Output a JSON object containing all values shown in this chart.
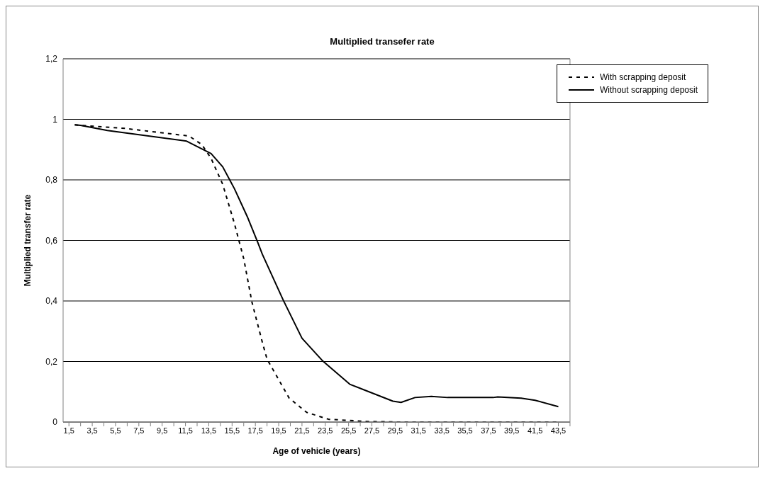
{
  "chart_data": {
    "type": "line",
    "title": "Multiplied transefer rate",
    "xlabel": "Age of vehicle (years)",
    "ylabel": "Multiplied transfer rate",
    "series": [
      {
        "name": "Without scrapping deposit",
        "color": "#000000",
        "line_style": "solid",
        "x": [
          2,
          2.5,
          4.8,
          11.6,
          13.7,
          14.7,
          15.7,
          16.8,
          17.7,
          18.1,
          19.9,
          21.5,
          23.3,
          25.6,
          29.3,
          30,
          31.2,
          32.6,
          34,
          37.9,
          38.3,
          40.3,
          41.5,
          43.5
        ],
        "values": [
          0.982,
          0.98,
          0.963,
          0.928,
          0.887,
          0.843,
          0.771,
          0.679,
          0.594,
          0.554,
          0.402,
          0.277,
          0.201,
          0.125,
          0.069,
          0.065,
          0.081,
          0.085,
          0.081,
          0.081,
          0.083,
          0.079,
          0.072,
          0.051
        ]
      },
      {
        "name": "With scrapping deposit",
        "color": "#000000",
        "line_style": "dashed",
        "x": [
          2,
          2.5,
          6.3,
          11.8,
          12.9,
          13.7,
          14.7,
          15.7,
          16.5,
          17.2,
          18.1,
          18.5,
          20.4,
          21.9,
          23.8,
          27.1,
          30,
          35,
          40,
          43.5
        ],
        "values": [
          0.982,
          0.98,
          0.97,
          0.945,
          0.917,
          0.871,
          0.785,
          0.656,
          0.54,
          0.397,
          0.263,
          0.208,
          0.079,
          0.032,
          0.009,
          0.002,
          0,
          0,
          0,
          0
        ]
      }
    ],
    "xlim": [
      1,
      44.5
    ],
    "xticks": [
      {
        "value": 1.5,
        "label": "1,5"
      },
      {
        "value": 2.5,
        "label": null
      },
      {
        "value": 3.5,
        "label": "3,5"
      },
      {
        "value": 4.5,
        "label": null
      },
      {
        "value": 5.5,
        "label": "5,5"
      },
      {
        "value": 6.5,
        "label": null
      },
      {
        "value": 7.5,
        "label": "7,5"
      },
      {
        "value": 8.5,
        "label": null
      },
      {
        "value": 9.5,
        "label": "9,5"
      },
      {
        "value": 10.5,
        "label": null
      },
      {
        "value": 11.5,
        "label": "11,5"
      },
      {
        "value": 12.5,
        "label": null
      },
      {
        "value": 13.5,
        "label": "13,5"
      },
      {
        "value": 14.5,
        "label": null
      },
      {
        "value": 15.5,
        "label": "15,5"
      },
      {
        "value": 16.5,
        "label": null
      },
      {
        "value": 17.5,
        "label": "17,5"
      },
      {
        "value": 18.5,
        "label": null
      },
      {
        "value": 19.5,
        "label": "19,5"
      },
      {
        "value": 20.5,
        "label": null
      },
      {
        "value": 21.5,
        "label": "21,5"
      },
      {
        "value": 22.5,
        "label": null
      },
      {
        "value": 23.5,
        "label": "23,5"
      },
      {
        "value": 24.5,
        "label": null
      },
      {
        "value": 25.5,
        "label": "25,5"
      },
      {
        "value": 26.5,
        "label": null
      },
      {
        "value": 27.5,
        "label": "27,5"
      },
      {
        "value": 28.5,
        "label": null
      },
      {
        "value": 29.5,
        "label": "29,5"
      },
      {
        "value": 30.5,
        "label": null
      },
      {
        "value": 31.5,
        "label": "31,5"
      },
      {
        "value": 32.5,
        "label": null
      },
      {
        "value": 33.5,
        "label": "33,5"
      },
      {
        "value": 34.5,
        "label": null
      },
      {
        "value": 35.5,
        "label": "35,5"
      },
      {
        "value": 36.5,
        "label": null
      },
      {
        "value": 37.5,
        "label": "37,5"
      },
      {
        "value": 38.5,
        "label": null
      },
      {
        "value": 39.5,
        "label": "39,5"
      },
      {
        "value": 40.5,
        "label": null
      },
      {
        "value": 41.5,
        "label": "41,5"
      },
      {
        "value": 42.5,
        "label": null
      },
      {
        "value": 43.5,
        "label": "43,5"
      },
      {
        "value": 44.5,
        "label": null
      }
    ],
    "ylim": [
      0,
      1.2
    ],
    "yticks": [
      0,
      {
        "value": 0.2,
        "label": "0,2"
      },
      {
        "value": 0.4,
        "label": "0,4"
      },
      {
        "value": 0.6,
        "label": "0,6"
      },
      {
        "value": 0.8,
        "label": "0,8"
      },
      1,
      {
        "value": 1.2,
        "label": "1,2"
      }
    ],
    "grid": "y",
    "legend": "top right",
    "marker": "none"
  }
}
